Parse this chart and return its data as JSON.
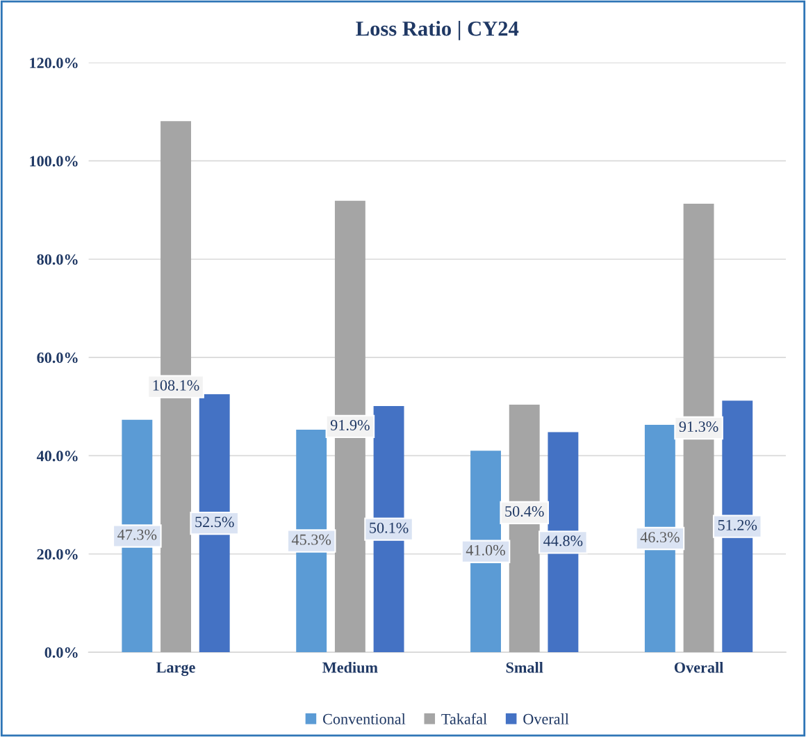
{
  "chart_data": {
    "type": "bar",
    "title": "Loss Ratio | CY24",
    "categories": [
      "Large",
      "Medium",
      "Small",
      "Overall"
    ],
    "series": [
      {
        "name": "Conventional",
        "color": "#5b9bd5",
        "values": [
          47.3,
          45.3,
          41.0,
          46.3
        ],
        "value_labels": [
          "47.3%",
          "45.3%",
          "41.0%",
          "46.3%"
        ]
      },
      {
        "name": "Takafal",
        "color": "#a5a5a5",
        "values": [
          108.1,
          91.9,
          50.4,
          91.3
        ],
        "value_labels": [
          "108.1%",
          "91.9%",
          "50.4%",
          "91.3%"
        ]
      },
      {
        "name": "Overall",
        "color": "#4472c4",
        "values": [
          52.5,
          50.1,
          44.8,
          51.2
        ],
        "value_labels": [
          "52.5%",
          "50.1%",
          "44.8%",
          "51.2%"
        ]
      }
    ],
    "ylim": [
      0,
      120
    ],
    "yticks": [
      {
        "value": 0,
        "label": "0.0%"
      },
      {
        "value": 20,
        "label": "20.0%"
      },
      {
        "value": 40,
        "label": "40.0%"
      },
      {
        "value": 60,
        "label": "60.0%"
      },
      {
        "value": 80,
        "label": "80.0%"
      },
      {
        "value": 100,
        "label": "100.0%"
      },
      {
        "value": 120,
        "label": "120.0%"
      }
    ],
    "grid": "y",
    "legend": "bottom"
  }
}
